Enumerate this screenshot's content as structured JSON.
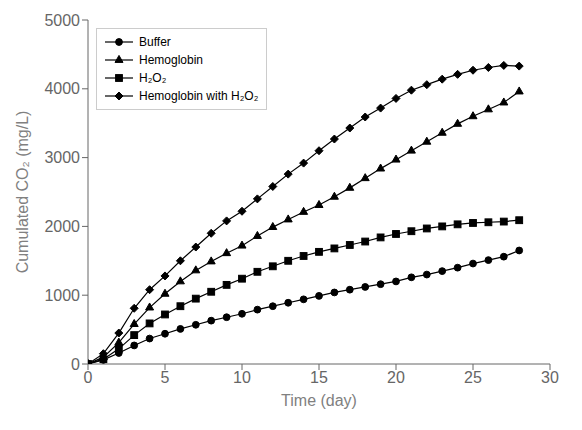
{
  "chart_data": {
    "type": "line",
    "xlabel": "Time (day)",
    "ylabel": "Cumulated CO₂ (mg/L)",
    "xlim": [
      0,
      30
    ],
    "ylim": [
      0,
      5000
    ],
    "xticks": [
      0,
      5,
      10,
      15,
      20,
      25,
      30
    ],
    "yticks": [
      0,
      1000,
      2000,
      3000,
      4000,
      5000
    ],
    "grid": false,
    "legend": "upper left",
    "x": [
      0,
      1,
      2,
      3,
      4,
      5,
      6,
      7,
      8,
      9,
      10,
      11,
      12,
      13,
      14,
      15,
      16,
      17,
      18,
      19,
      20,
      21,
      22,
      23,
      24,
      25,
      26,
      27,
      28
    ],
    "series": [
      {
        "name": "Buffer",
        "marker": "circle",
        "color": "#000000",
        "values": [
          0,
          60,
          160,
          270,
          370,
          440,
          510,
          570,
          630,
          680,
          730,
          790,
          840,
          890,
          940,
          990,
          1040,
          1080,
          1120,
          1160,
          1200,
          1260,
          1300,
          1350,
          1400,
          1460,
          1510,
          1560,
          1650
        ]
      },
      {
        "name": "Hemoglobin",
        "marker": "triangle",
        "color": "#000000",
        "values": [
          0,
          100,
          310,
          580,
          820,
          1020,
          1200,
          1360,
          1490,
          1610,
          1720,
          1860,
          1990,
          2100,
          2210,
          2310,
          2430,
          2560,
          2700,
          2840,
          2970,
          3100,
          3230,
          3360,
          3490,
          3600,
          3700,
          3800,
          3960
        ]
      },
      {
        "name": "H₂O₂",
        "marker": "square",
        "color": "#000000",
        "values": [
          0,
          70,
          220,
          420,
          590,
          720,
          840,
          950,
          1050,
          1150,
          1240,
          1340,
          1420,
          1500,
          1570,
          1630,
          1680,
          1730,
          1780,
          1840,
          1890,
          1930,
          1970,
          2000,
          2030,
          2050,
          2060,
          2070,
          2090
        ]
      },
      {
        "name": "Hemoglobin with H₂O₂",
        "marker": "diamond",
        "color": "#000000",
        "values": [
          0,
          150,
          450,
          810,
          1080,
          1280,
          1500,
          1700,
          1900,
          2080,
          2220,
          2400,
          2580,
          2760,
          2920,
          3100,
          3270,
          3430,
          3590,
          3720,
          3860,
          3980,
          4060,
          4140,
          4210,
          4270,
          4310,
          4340,
          4330
        ]
      }
    ]
  }
}
